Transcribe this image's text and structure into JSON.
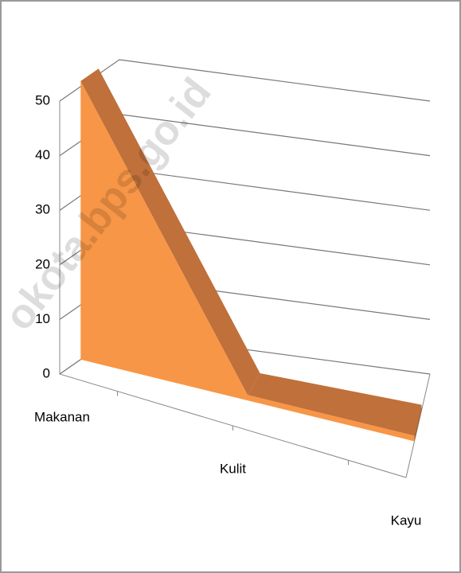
{
  "chart_data": {
    "type": "area3d",
    "categories": [
      "Makanan",
      "Kulit",
      "Kayu"
    ],
    "values": [
      51,
      1,
      1
    ],
    "color": "#f79646",
    "ylim": [
      0,
      50
    ],
    "yticks": [
      0,
      10,
      20,
      30,
      40,
      50
    ],
    "grid": true,
    "watermark": "okota.bps.go.id"
  }
}
